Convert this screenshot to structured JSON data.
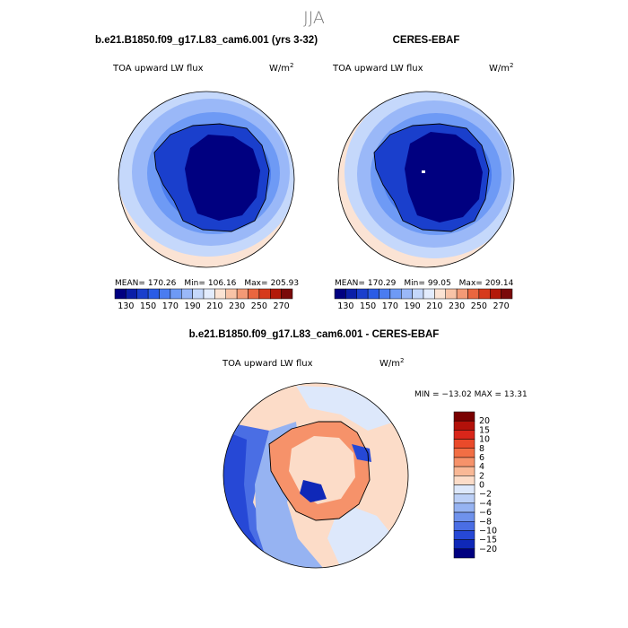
{
  "figure": {
    "title": "JJA"
  },
  "chart_data": [
    {
      "type": "heatmap",
      "projection": "south polar stereographic",
      "title": "b.e21.B1850.f09_g17.L83_cam6.001 (yrs 3-32)",
      "variable": "TOA upward LW flux",
      "units_text": "W/m",
      "units_exp": "2",
      "stats": {
        "mean_label": "MEAN=",
        "mean": "170.26",
        "min_label": "Min=",
        "min": "106.16",
        "max_label": "Max=",
        "max": "205.93"
      },
      "colorbar": {
        "orientation": "horizontal",
        "levels": [
          130,
          140,
          150,
          160,
          170,
          180,
          190,
          200,
          210,
          220,
          230,
          240,
          250,
          260,
          270
        ],
        "tick_labels": [
          "130",
          "150",
          "170",
          "190",
          "210",
          "230",
          "250",
          "270"
        ],
        "colors": [
          "#000080",
          "#0a1fa8",
          "#1a3fcc",
          "#2a5ce6",
          "#4a7cf0",
          "#6e9af5",
          "#9ab8f8",
          "#c5d8fb",
          "#e3ecfd",
          "#fbe3d4",
          "#f8c3a7",
          "#f39a76",
          "#e9663f",
          "#d63a1c",
          "#b31a0a",
          "#7a0a0a"
        ]
      }
    },
    {
      "type": "heatmap",
      "projection": "south polar stereographic",
      "title": "CERES-EBAF",
      "variable": "TOA upward LW flux",
      "units_text": "W/m",
      "units_exp": "2",
      "stats": {
        "mean_label": "MEAN=",
        "mean": "170.29",
        "min_label": "Min=",
        "min": "99.05",
        "max_label": "Max=",
        "max": "209.14"
      },
      "colorbar": {
        "orientation": "horizontal",
        "levels": [
          130,
          140,
          150,
          160,
          170,
          180,
          190,
          200,
          210,
          220,
          230,
          240,
          250,
          260,
          270
        ],
        "tick_labels": [
          "130",
          "150",
          "170",
          "190",
          "210",
          "230",
          "250",
          "270"
        ],
        "colors": [
          "#000080",
          "#0a1fa8",
          "#1a3fcc",
          "#2a5ce6",
          "#4a7cf0",
          "#6e9af5",
          "#9ab8f8",
          "#c5d8fb",
          "#e3ecfd",
          "#fbe3d4",
          "#f8c3a7",
          "#f39a76",
          "#e9663f",
          "#d63a1c",
          "#b31a0a",
          "#7a0a0a"
        ]
      }
    },
    {
      "type": "heatmap",
      "projection": "south polar stereographic",
      "title": "b.e21.B1850.f09_g17.L83_cam6.001 - CERES-EBAF",
      "variable": "TOA upward LW flux",
      "units_text": "W/m",
      "units_exp": "2",
      "stats": {
        "text": "MIN = −13.02  MAX =  13.31",
        "min": -13.02,
        "max": 13.31
      },
      "colorbar": {
        "orientation": "vertical",
        "levels": [
          -20,
          -15,
          -10,
          -8,
          -6,
          -4,
          -2,
          0,
          2,
          4,
          6,
          8,
          10,
          15,
          20
        ],
        "tick_labels": [
          "20",
          "15",
          "10",
          "8",
          "6",
          "4",
          "2",
          "0",
          "−2",
          "−4",
          "−6",
          "−8",
          "−10",
          "−15",
          "−20"
        ],
        "colors": [
          "#7a0000",
          "#b3110a",
          "#d9261a",
          "#ea4a2a",
          "#f26e44",
          "#f6926a",
          "#f9b896",
          "#fcdcc8",
          "#dde8fb",
          "#bcd0f7",
          "#96b3f2",
          "#6f92ec",
          "#4a6ee4",
          "#2648d6",
          "#0f28b8",
          "#000080"
        ]
      }
    }
  ]
}
